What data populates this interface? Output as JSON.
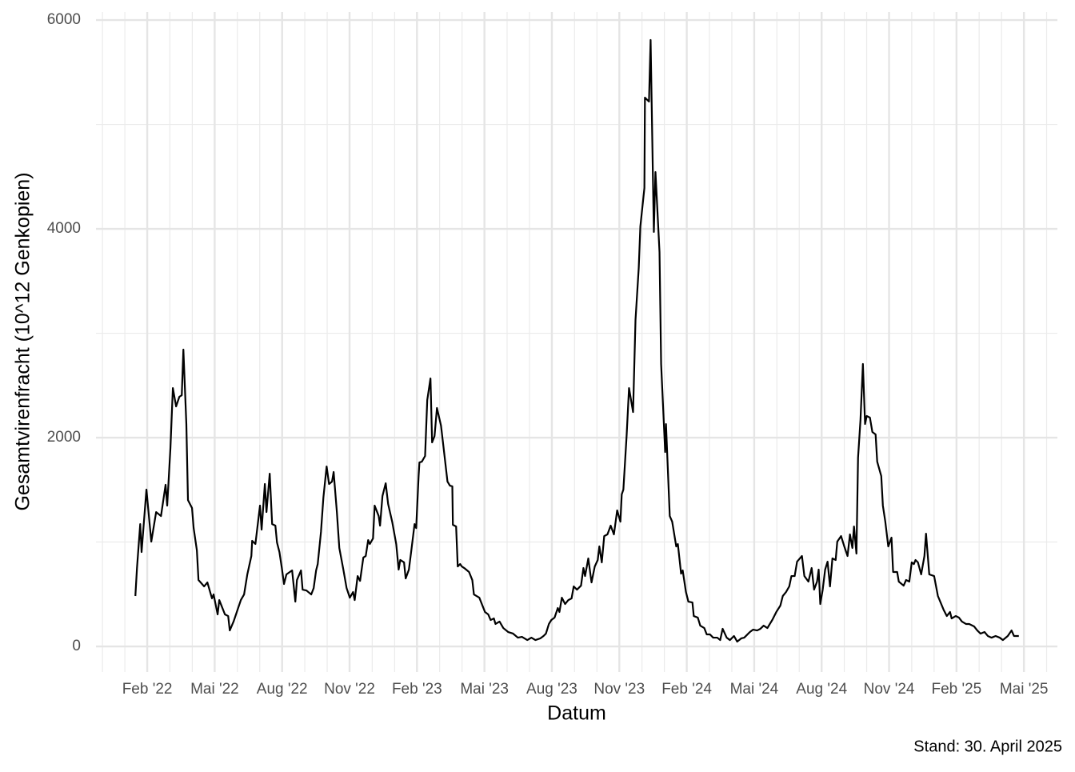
{
  "chart_data": {
    "type": "line",
    "x_label": "Datum",
    "y_label": "Gesamtvirenfracht (10^12 Genkopien)",
    "caption": "Stand: 30. April 2025",
    "color": "#000000",
    "grid": true,
    "xlim": [
      2021.893,
      2025.457
    ],
    "ylim": [
      -245,
      6077
    ],
    "yticks": [
      0,
      2000,
      4000,
      6000
    ],
    "yminor": [
      1000,
      3000,
      5000
    ],
    "xticks": [
      {
        "value": 2022.083,
        "label": "Feb '22"
      },
      {
        "value": 2022.333,
        "label": "Mai '22"
      },
      {
        "value": 2022.583,
        "label": "Aug '22"
      },
      {
        "value": 2022.833,
        "label": "Nov '22"
      },
      {
        "value": 2023.083,
        "label": "Feb '23"
      },
      {
        "value": 2023.333,
        "label": "Mai '23"
      },
      {
        "value": 2023.583,
        "label": "Aug '23"
      },
      {
        "value": 2023.833,
        "label": "Nov '23"
      },
      {
        "value": 2024.083,
        "label": "Feb '24"
      },
      {
        "value": 2024.333,
        "label": "Mai '24"
      },
      {
        "value": 2024.583,
        "label": "Aug '24"
      },
      {
        "value": 2024.833,
        "label": "Nov '24"
      },
      {
        "value": 2025.083,
        "label": "Feb '25"
      },
      {
        "value": 2025.333,
        "label": "Mai '25"
      }
    ],
    "xminor": [
      2021.917,
      2022.0,
      2022.167,
      2022.25,
      2022.417,
      2022.5,
      2022.667,
      2022.75,
      2022.917,
      2023.0,
      2023.167,
      2023.25,
      2023.417,
      2023.5,
      2023.667,
      2023.75,
      2023.917,
      2024.0,
      2024.167,
      2024.25,
      2024.417,
      2024.5,
      2024.667,
      2024.75,
      2024.917,
      2025.0,
      2025.167,
      2025.25,
      2025.417
    ],
    "x": [
      2022.039,
      2022.045,
      2022.057,
      2022.062,
      2022.08,
      2022.098,
      2022.116,
      2022.134,
      2022.151,
      2022.157,
      2022.169,
      2022.178,
      2022.19,
      2022.202,
      2022.211,
      2022.217,
      2022.228,
      2022.234,
      2022.249,
      2022.255,
      2022.267,
      2022.273,
      2022.294,
      2022.306,
      2022.323,
      2022.329,
      2022.344,
      2022.35,
      2022.371,
      2022.383,
      2022.389,
      2022.403,
      2022.43,
      2022.442,
      2022.454,
      2022.469,
      2022.472,
      2022.484,
      2022.501,
      2022.507,
      2022.519,
      2022.525,
      2022.537,
      2022.546,
      2022.558,
      2022.564,
      2022.573,
      2022.582,
      2022.59,
      2022.599,
      2022.62,
      2022.632,
      2022.638,
      2022.653,
      2022.659,
      2022.673,
      2022.691,
      2022.7,
      2022.709,
      2022.715,
      2022.727,
      2022.736,
      2022.748,
      2022.757,
      2022.768,
      2022.774,
      2022.786,
      2022.795,
      2022.81,
      2022.822,
      2022.834,
      2022.846,
      2022.852,
      2022.863,
      2022.872,
      2022.884,
      2022.893,
      2022.902,
      2022.908,
      2022.92,
      2022.926,
      2022.941,
      2022.946,
      2022.955,
      2022.967,
      2022.976,
      2022.991,
      2023.006,
      2023.015,
      2023.021,
      2023.035,
      2023.041,
      2023.053,
      2023.062,
      2023.074,
      2023.08,
      2023.089,
      2023.092,
      2023.101,
      2023.113,
      2023.121,
      2023.133,
      2023.139,
      2023.148,
      2023.157,
      2023.172,
      2023.181,
      2023.196,
      2023.205,
      2023.214,
      2023.216,
      2023.228,
      2023.234,
      2023.243,
      2023.249,
      2023.258,
      2023.276,
      2023.288,
      2023.294,
      2023.314,
      2023.335,
      2023.347,
      2023.356,
      2023.368,
      2023.374,
      2023.389,
      2023.403,
      2023.421,
      2023.439,
      2023.457,
      2023.472,
      2023.492,
      2023.507,
      2023.522,
      2023.54,
      2023.552,
      2023.561,
      2023.572,
      2023.581,
      2023.593,
      2023.605,
      2023.611,
      2023.62,
      2023.632,
      2023.644,
      2023.656,
      2023.664,
      2023.676,
      2023.691,
      2023.7,
      2023.706,
      2023.718,
      2023.73,
      2023.742,
      2023.753,
      2023.759,
      2023.768,
      2023.777,
      2023.789,
      2023.801,
      2023.813,
      2023.825,
      2023.837,
      2023.842,
      2023.848,
      2023.86,
      2023.869,
      2023.884,
      2023.893,
      2023.905,
      2023.911,
      2023.926,
      2023.928,
      2023.943,
      2023.949,
      2023.961,
      2023.967,
      2023.982,
      2023.988,
      2024.003,
      2024.006,
      2024.02,
      2024.029,
      2024.044,
      2024.05,
      2024.062,
      2024.068,
      2024.08,
      2024.089,
      2024.104,
      2024.109,
      2024.124,
      2024.133,
      2024.148,
      2024.157,
      2024.169,
      2024.181,
      2024.196,
      2024.207,
      2024.216,
      2024.231,
      2024.243,
      2024.258,
      2024.27,
      2024.285,
      2024.296,
      2024.305,
      2024.317,
      2024.329,
      2024.344,
      2024.356,
      2024.368,
      2024.382,
      2024.391,
      2024.4,
      2024.415,
      2024.43,
      2024.439,
      2024.451,
      2024.463,
      2024.471,
      2024.483,
      2024.492,
      2024.51,
      2024.519,
      2024.534,
      2024.546,
      2024.555,
      2024.566,
      2024.572,
      2024.578,
      2024.587,
      2024.596,
      2024.605,
      2024.614,
      2024.623,
      2024.635,
      2024.641,
      2024.655,
      2024.667,
      2024.679,
      2024.688,
      2024.697,
      2024.703,
      2024.712,
      2024.718,
      2024.727,
      2024.736,
      2024.744,
      2024.75,
      2024.762,
      2024.771,
      2024.783,
      2024.789,
      2024.804,
      2024.81,
      2024.819,
      2024.83,
      2024.842,
      2024.848,
      2024.863,
      2024.869,
      2024.887,
      2024.896,
      2024.908,
      2024.917,
      2024.925,
      2024.931,
      2024.94,
      2024.952,
      2024.964,
      2024.97,
      2024.982,
      2025.0,
      2025.014,
      2025.035,
      2025.047,
      2025.059,
      2025.065,
      2025.08,
      2025.092,
      2025.103,
      2025.118,
      2025.13,
      2025.148,
      2025.16,
      2025.172,
      2025.187,
      2025.199,
      2025.213,
      2025.228,
      2025.243,
      2025.255,
      2025.273,
      2025.287,
      2025.296,
      2025.314
    ],
    "values": [
      483,
      751,
      1172,
      904,
      1502,
      1004,
      1287,
      1249,
      1548,
      1349,
      1900,
      2475,
      2299,
      2391,
      2406,
      2843,
      2130,
      1402,
      1326,
      1134,
      920,
      636,
      575,
      613,
      460,
      498,
      307,
      444,
      307,
      291,
      153,
      238,
      444,
      498,
      690,
      866,
      1012,
      981,
      1349,
      1119,
      1556,
      1287,
      1655,
      1172,
      1157,
      996,
      904,
      751,
      598,
      690,
      728,
      429,
      636,
      728,
      544,
      536,
      498,
      559,
      728,
      789,
      1096,
      1425,
      1724,
      1556,
      1579,
      1671,
      1287,
      943,
      736,
      559,
      467,
      521,
      444,
      674,
      628,
      851,
      866,
      1019,
      981,
      1034,
      1349,
      1249,
      1157,
      1441,
      1563,
      1364,
      1195,
      981,
      736,
      828,
      805,
      651,
      736,
      920,
      1172,
      1134,
      1632,
      1762,
      1770,
      1824,
      2360,
      2567,
      1954,
      2015,
      2284,
      2115,
      1916,
      1579,
      1540,
      1533,
      1165,
      1149,
      766,
      789,
      766,
      751,
      713,
      636,
      498,
      467,
      330,
      307,
      253,
      268,
      215,
      238,
      176,
      138,
      123,
      84,
      92,
      61,
      84,
      61,
      77,
      100,
      123,
      215,
      253,
      276,
      368,
      330,
      467,
      406,
      444,
      460,
      575,
      544,
      582,
      751,
      674,
      843,
      613,
      766,
      828,
      958,
      805,
      1057,
      1073,
      1157,
      1073,
      1303,
      1195,
      1456,
      1502,
      2015,
      2475,
      2245,
      3127,
      3625,
      4023,
      4391,
      5257,
      5219,
      5809,
      3970,
      4544,
      3778,
      2705,
      1862,
      2130,
      1249,
      1195,
      958,
      981,
      697,
      728,
      521,
      429,
      421,
      291,
      276,
      199,
      176,
      115,
      115,
      84,
      84,
      61,
      169,
      84,
      61,
      100,
      46,
      77,
      84,
      107,
      138,
      161,
      153,
      169,
      199,
      176,
      215,
      253,
      330,
      391,
      483,
      521,
      575,
      674,
      674,
      812,
      866,
      674,
      621,
      751,
      544,
      621,
      736,
      406,
      544,
      736,
      812,
      575,
      843,
      828,
      1004,
      1057,
      958,
      866,
      1073,
      943,
      1149,
      889,
      1808,
      2169,
      2705,
      2130,
      2207,
      2192,
      2054,
      2031,
      1770,
      1632,
      1349,
      1195,
      958,
      1042,
      713,
      713,
      621,
      582,
      636,
      621,
      805,
      789,
      828,
      805,
      690,
      866,
      1080,
      690,
      674,
      483,
      352,
      291,
      330,
      268,
      291,
      276,
      238,
      215,
      215,
      192,
      153,
      123,
      138,
      100,
      84,
      100,
      84,
      61,
      100,
      153,
      100,
      100
    ]
  }
}
